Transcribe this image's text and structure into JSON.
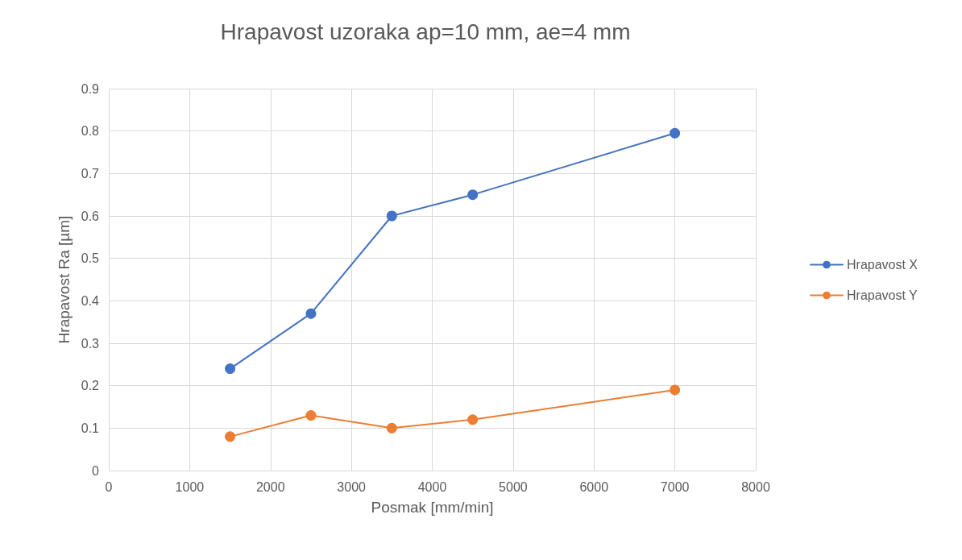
{
  "chart_data": {
    "type": "line",
    "title": "Hrapavost uzoraka ap=10 mm, ae=4 mm",
    "xlabel": "Posmak [mm/min]",
    "ylabel": "Hrapavost Ra [µm]",
    "x": [
      1500,
      2500,
      3500,
      4500,
      7000
    ],
    "series": [
      {
        "name": "Hrapavost X",
        "color": "#4472c4",
        "values": [
          0.24,
          0.37,
          0.6,
          0.65,
          0.795
        ]
      },
      {
        "name": "Hrapavost Y",
        "color": "#ed7d31",
        "values": [
          0.08,
          0.13,
          0.1,
          0.12,
          0.19
        ]
      }
    ],
    "xlim": [
      0,
      8000
    ],
    "xticks": [
      0,
      1000,
      2000,
      3000,
      4000,
      5000,
      6000,
      7000,
      8000
    ],
    "ylim": [
      0,
      0.9
    ],
    "yticks": [
      0,
      0.1,
      0.2,
      0.3,
      0.4,
      0.5,
      0.6,
      0.7,
      0.8,
      0.9
    ],
    "grid": true,
    "legend": "right",
    "marker": "circle",
    "line_style": "solid"
  }
}
